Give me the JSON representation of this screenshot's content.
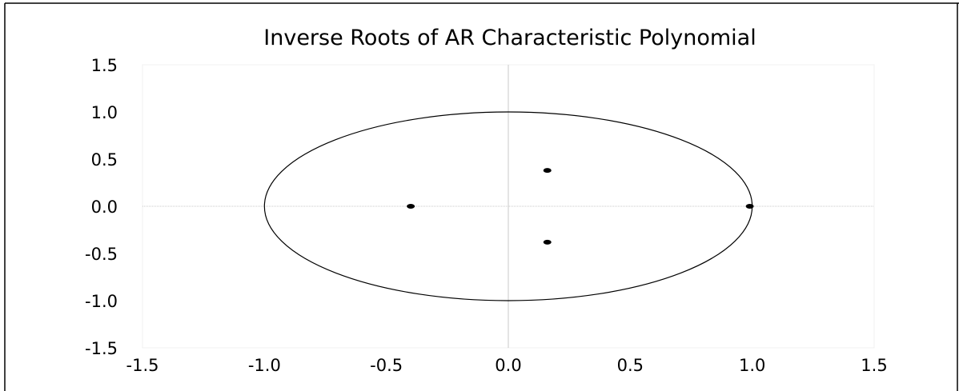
{
  "chart_data": {
    "type": "scatter",
    "title": "Inverse Roots of AR Characteristic Polynomial",
    "xlabel": "",
    "ylabel": "",
    "xlim": [
      -1.5,
      1.5
    ],
    "ylim": [
      -1.5,
      1.5
    ],
    "x_ticks": [
      "-1.5",
      "-1.0",
      "-0.5",
      "0.0",
      "0.5",
      "1.0",
      "1.5"
    ],
    "y_ticks": [
      "1.5",
      "1.0",
      "0.5",
      "0.0",
      "-0.5",
      "-1.0",
      "-1.5"
    ],
    "unit_circle": true,
    "zero_reference_lines": true,
    "grid": false,
    "legend": "none",
    "points": [
      {
        "x": -0.4,
        "y": 0.0
      },
      {
        "x": 0.16,
        "y": 0.38
      },
      {
        "x": 0.16,
        "y": -0.38
      },
      {
        "x": 0.99,
        "y": 0.0
      }
    ],
    "colors": {
      "points": "#000000",
      "circle": "#000000",
      "reference": "#c8c8c8",
      "frame": "#000000"
    }
  }
}
